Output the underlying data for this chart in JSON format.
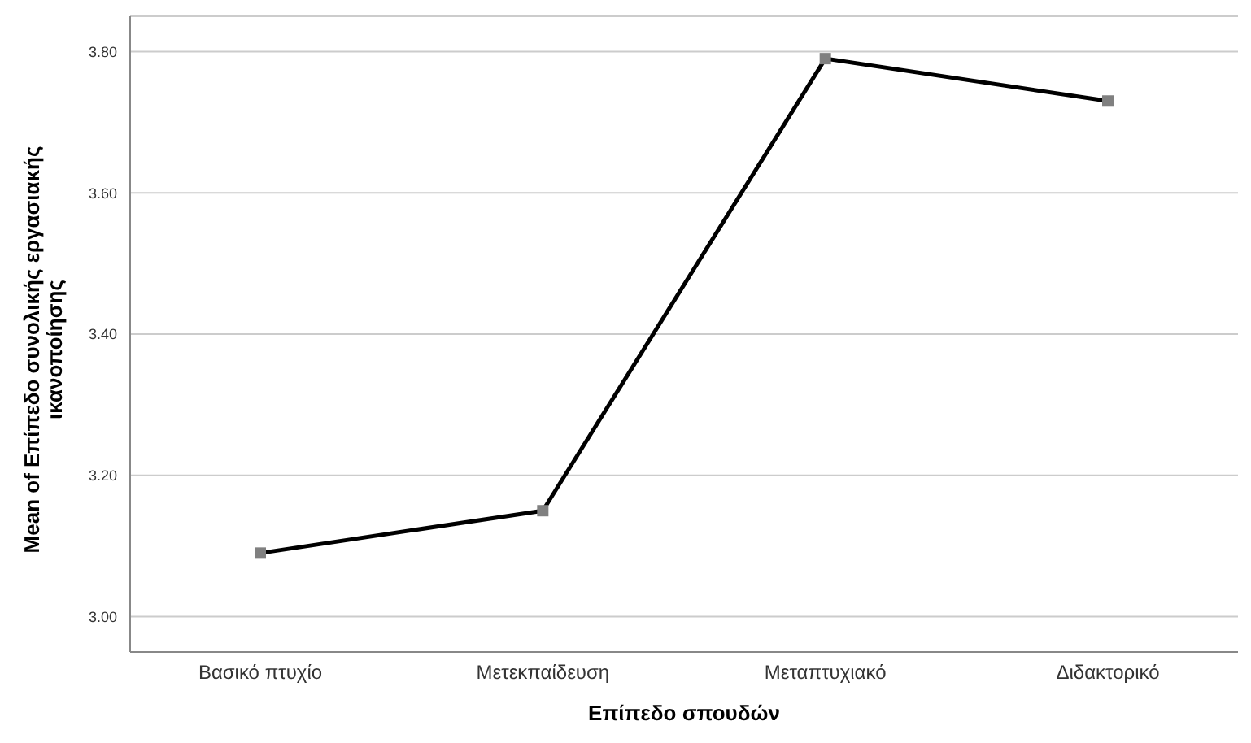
{
  "chart_data": {
    "type": "line",
    "xlabel": "Επίπεδο σπουδών",
    "ylabel": "Mean of Επίπεδο συνολικής εργασιακής ικανοποίησης",
    "categories": [
      "Βασικό πτυχίο",
      "Μετεκπαίδευση",
      "Μεταπτυχιακό",
      "Διδακτορικό"
    ],
    "series": [
      {
        "color": "#000000",
        "values": [
          3.09,
          3.15,
          3.79,
          3.73
        ]
      }
    ],
    "ylim": [
      2.95,
      3.85
    ],
    "yticks": [
      {
        "value": 3,
        "label": "3.00"
      },
      {
        "value": 3.2,
        "label": "3.20"
      },
      {
        "value": 3.4,
        "label": "3.40"
      },
      {
        "value": 3.6,
        "label": "3.60"
      },
      {
        "value": 3.8,
        "label": "3.80"
      }
    ],
    "grid": "y",
    "marker": "square",
    "line_style": "solid",
    "legend": false
  }
}
